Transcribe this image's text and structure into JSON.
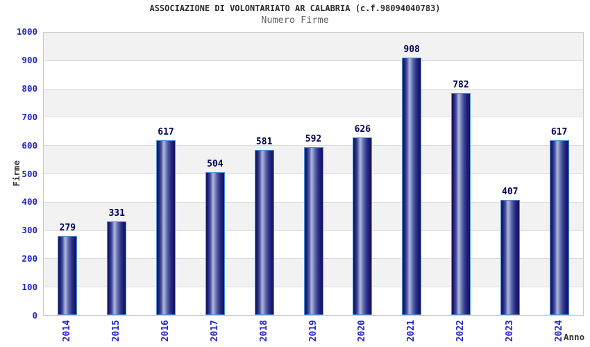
{
  "header": {
    "title": "ASSOCIAZIONE DI VOLONTARIATO AR CALABRIA (c.f.98094040783)",
    "subtitle": "Numero Firme"
  },
  "chart_data": {
    "type": "bar",
    "title": "ASSOCIAZIONE DI VOLONTARIATO AR CALABRIA (c.f.98094040783)",
    "subtitle": "Numero Firme",
    "categories": [
      "2014",
      "2015",
      "2016",
      "2017",
      "2018",
      "2019",
      "2020",
      "2021",
      "2022",
      "2023",
      "2024"
    ],
    "values": [
      279,
      331,
      617,
      504,
      581,
      592,
      626,
      908,
      782,
      407,
      617
    ],
    "xlabel": "Anno",
    "ylabel": "Firme",
    "ylim": [
      0,
      1000
    ],
    "ytick_step": 100,
    "yticks": [
      0,
      100,
      200,
      300,
      400,
      500,
      600,
      700,
      800,
      900,
      1000
    ],
    "grid": "alternating-horizontal-bands",
    "legend": "none",
    "bar_value_labels": true,
    "colors": {
      "title": "#2b2b2b",
      "subtitle": "#666666",
      "tick_label": "#2222cc",
      "value_label": "#000055",
      "axis_label": "#333333",
      "band_gray": "#f2f2f2",
      "grid_line": "#dcdcdc",
      "plot_border": "#c9c9c9",
      "bar_dark": "#13135d",
      "bar_light": "#aeb8de",
      "bar_border": "#4f94d8",
      "background": "#ffffff"
    }
  }
}
